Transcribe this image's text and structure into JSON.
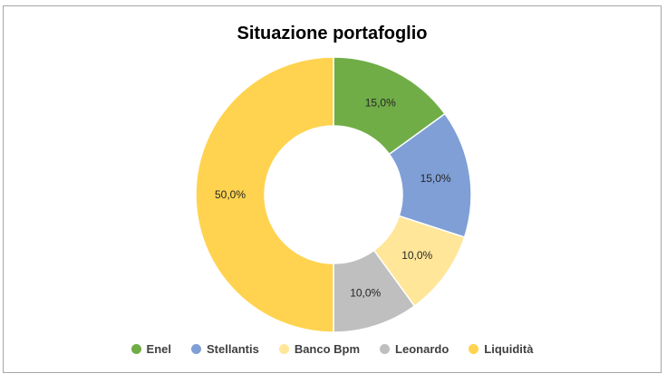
{
  "chart_data": {
    "type": "pie",
    "variant": "donut",
    "title": "Situazione portafoglio",
    "categories": [
      "Enel",
      "Stellantis",
      "Banco Bpm",
      "Leonardo",
      "Liquidità"
    ],
    "values": [
      15.0,
      15.0,
      10.0,
      10.0,
      50.0
    ],
    "data_labels": [
      "15,0%",
      "15,0%",
      "10,0%",
      "10,0%",
      "50,0%"
    ],
    "colors": [
      "#70ad47",
      "#7f9fd6",
      "#ffe699",
      "#bfbfbf",
      "#ffd34f"
    ],
    "legend_position": "bottom"
  }
}
